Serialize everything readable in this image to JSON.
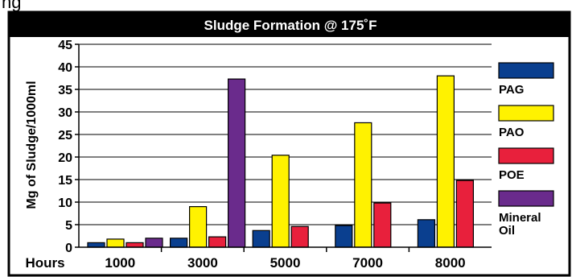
{
  "top_fragment": "ng",
  "chart_data": {
    "type": "bar",
    "title": "Sludge Formation @ 175˚F",
    "xlabel": "Hours",
    "ylabel": "Mg of Sludge/1000ml",
    "categories": [
      "1000",
      "3000",
      "5000",
      "7000",
      "8000"
    ],
    "ylim": [
      0,
      45
    ],
    "yticks": [
      0,
      5,
      10,
      15,
      20,
      25,
      30,
      35,
      40,
      45
    ],
    "grid": true,
    "legend_position": "right",
    "series": [
      {
        "name": "PAG",
        "color": "#0a3f8f",
        "values": [
          1,
          2,
          3.7,
          4.8,
          6.1
        ]
      },
      {
        "name": "PAO",
        "color": "#fff200",
        "values": [
          1.8,
          9,
          20.4,
          27.6,
          38
        ]
      },
      {
        "name": "POE",
        "color": "#e8203c",
        "values": [
          1,
          2.3,
          4.6,
          9.8,
          14.8
        ]
      },
      {
        "name": "Mineral Oil",
        "legend_lines": [
          "Mineral",
          "Oil"
        ],
        "color": "#6a2b8c",
        "values": [
          2,
          37.3,
          null,
          null,
          null
        ]
      }
    ]
  }
}
